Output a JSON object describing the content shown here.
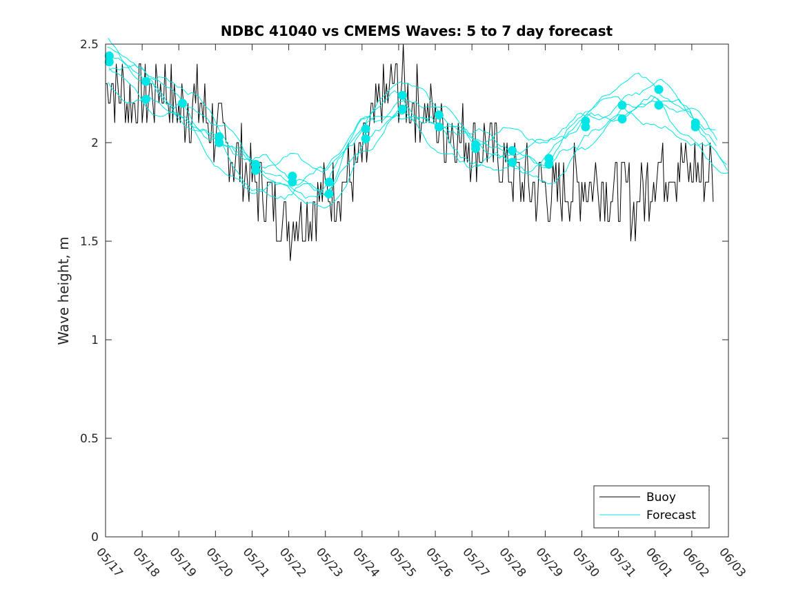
{
  "chart_data": {
    "type": "line",
    "title": "NDBC 41040 vs CMEMS Waves: 5 to 7 day forecast",
    "xlabel": "",
    "ylabel": "Wave height, m",
    "x_tick_labels": [
      "05/17",
      "05/18",
      "05/19",
      "05/20",
      "05/21",
      "05/22",
      "05/23",
      "05/24",
      "05/25",
      "05/26",
      "05/27",
      "05/28",
      "05/29",
      "05/30",
      "05/31",
      "06/01",
      "06/02",
      "06/03"
    ],
    "y_tick_labels": [
      "0",
      "0.5",
      "1",
      "1.5",
      "2",
      "2.5"
    ],
    "xlim_days": [
      0,
      17
    ],
    "ylim": [
      0,
      2.5
    ],
    "grid": false,
    "legend_position": "bottom-right",
    "colors": {
      "buoy": "#000000",
      "forecast": "#00e5e5"
    },
    "series": [
      {
        "name": "Buoy",
        "x": [
          0,
          0.5,
          1,
          1.5,
          2,
          2.5,
          3,
          3.5,
          4,
          4.5,
          5,
          5.5,
          6,
          6.5,
          7,
          7.5,
          8,
          8.5,
          9,
          9.5,
          10,
          10.5,
          11,
          11.5,
          12,
          12.5,
          13,
          13.5,
          14,
          14.5,
          15,
          15.5,
          16,
          16.5
        ],
        "y": [
          2.3,
          2.25,
          2.2,
          2.3,
          2.15,
          2.2,
          2.05,
          1.95,
          1.8,
          1.7,
          1.6,
          1.65,
          1.75,
          1.8,
          1.9,
          2.2,
          2.3,
          2.2,
          2.1,
          2.05,
          2.0,
          2.0,
          1.85,
          1.8,
          1.75,
          1.75,
          1.8,
          1.8,
          1.75,
          1.7,
          1.85,
          1.9,
          1.85,
          1.85
        ]
      },
      {
        "name": "Forecast",
        "x": [
          0,
          1,
          2,
          3,
          4,
          5,
          6,
          7,
          8,
          9,
          10,
          11,
          12,
          13,
          14,
          15,
          16,
          17
        ],
        "y": [
          2.42,
          2.3,
          2.18,
          2.02,
          1.85,
          1.8,
          1.76,
          2.05,
          2.2,
          2.1,
          1.98,
          1.94,
          1.9,
          2.08,
          2.18,
          2.22,
          2.1,
          1.9
        ]
      }
    ],
    "forecast_markers": {
      "x": [
        0.1,
        0.1,
        1.1,
        1.1,
        2.1,
        3.1,
        3.1,
        4.1,
        4.1,
        5.1,
        5.1,
        6.1,
        6.1,
        7.1,
        7.1,
        8.1,
        8.1,
        9.1,
        9.1,
        10.1,
        10.1,
        11.1,
        11.1,
        12.1,
        12.1,
        13.1,
        13.1,
        14.1,
        14.1,
        15.1,
        15.1,
        16.1,
        16.1
      ],
      "y": [
        2.44,
        2.41,
        2.31,
        2.22,
        2.2,
        2.03,
        2.0,
        1.89,
        1.86,
        1.83,
        1.8,
        1.8,
        1.74,
        2.07,
        2.02,
        2.24,
        2.17,
        2.14,
        2.08,
        1.99,
        1.97,
        1.96,
        1.9,
        1.92,
        1.89,
        2.11,
        2.08,
        2.19,
        2.12,
        2.27,
        2.19,
        2.1,
        2.08
      ]
    }
  },
  "legend": {
    "items": [
      "Buoy",
      "Forecast"
    ]
  }
}
